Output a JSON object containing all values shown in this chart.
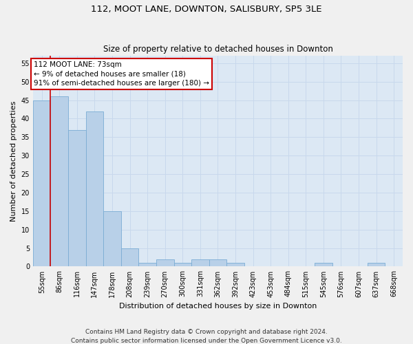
{
  "title1": "112, MOOT LANE, DOWNTON, SALISBURY, SP5 3LE",
  "title2": "Size of property relative to detached houses in Downton",
  "xlabel": "Distribution of detached houses by size in Downton",
  "ylabel": "Number of detached properties",
  "footer1": "Contains HM Land Registry data © Crown copyright and database right 2024.",
  "footer2": "Contains public sector information licensed under the Open Government Licence v3.0.",
  "annotation_line1": "112 MOOT LANE: 73sqm",
  "annotation_line2": "← 9% of detached houses are smaller (18)",
  "annotation_line3": "91% of semi-detached houses are larger (180) →",
  "bar_values": [
    45,
    46,
    37,
    42,
    15,
    5,
    1,
    2,
    1,
    2,
    2,
    1,
    0,
    0,
    0,
    0,
    1,
    0,
    0,
    1,
    0
  ],
  "categories": [
    "55sqm",
    "86sqm",
    "116sqm",
    "147sqm",
    "178sqm",
    "208sqm",
    "239sqm",
    "270sqm",
    "300sqm",
    "331sqm",
    "362sqm",
    "392sqm",
    "423sqm",
    "453sqm",
    "484sqm",
    "515sqm",
    "545sqm",
    "576sqm",
    "607sqm",
    "637sqm",
    "668sqm"
  ],
  "bar_color": "#b8d0e8",
  "bar_edge_color": "#7aacd4",
  "ylim": [
    0,
    57
  ],
  "yticks": [
    0,
    5,
    10,
    15,
    20,
    25,
    30,
    35,
    40,
    45,
    50,
    55
  ],
  "grid_color": "#c8d8ec",
  "bg_color": "#dce8f4",
  "fig_bg_color": "#f0f0f0",
  "annotation_box_facecolor": "#ffffff",
  "annotation_box_edgecolor": "#cc0000",
  "vline_color": "#cc0000",
  "vline_x": 0.5,
  "title1_fontsize": 9.5,
  "title2_fontsize": 8.5,
  "axis_label_fontsize": 8,
  "tick_fontsize": 7,
  "annotation_fontsize": 7.5,
  "footer_fontsize": 6.5,
  "ylabel_fontsize": 8
}
